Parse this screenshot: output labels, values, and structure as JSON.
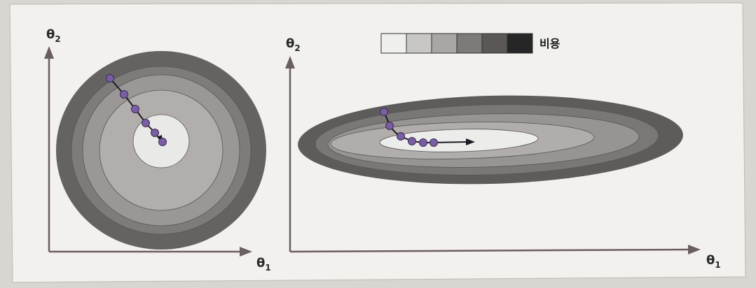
{
  "legend": {
    "label": "비용",
    "shades": [
      "#efefed",
      "#c9c7c4",
      "#a9a6a3",
      "#7d7a78",
      "#5a5756",
      "#262626"
    ]
  },
  "left_panel": {
    "y_axis_label": "θ",
    "y_axis_sub": "2",
    "x_axis_label": "θ",
    "x_axis_sub": "1",
    "ring_shades": [
      "#656262",
      "#7e7b7b",
      "#9a9796",
      "#b1aeab",
      "#e9e9e7"
    ],
    "path_color": "#7a5ea3"
  },
  "right_panel": {
    "y_axis_label": "θ",
    "y_axis_sub": "2",
    "x_axis_label": "θ",
    "x_axis_sub": "1",
    "ring_shades": [
      "#5e5b5b",
      "#7a7777",
      "#979493",
      "#b0adaa",
      "#ececea"
    ],
    "path_color": "#7a5ea3"
  },
  "colors": {
    "background": "#d9d6d1",
    "panel": "#f3f2ef",
    "axis": "#6b5e5e"
  }
}
